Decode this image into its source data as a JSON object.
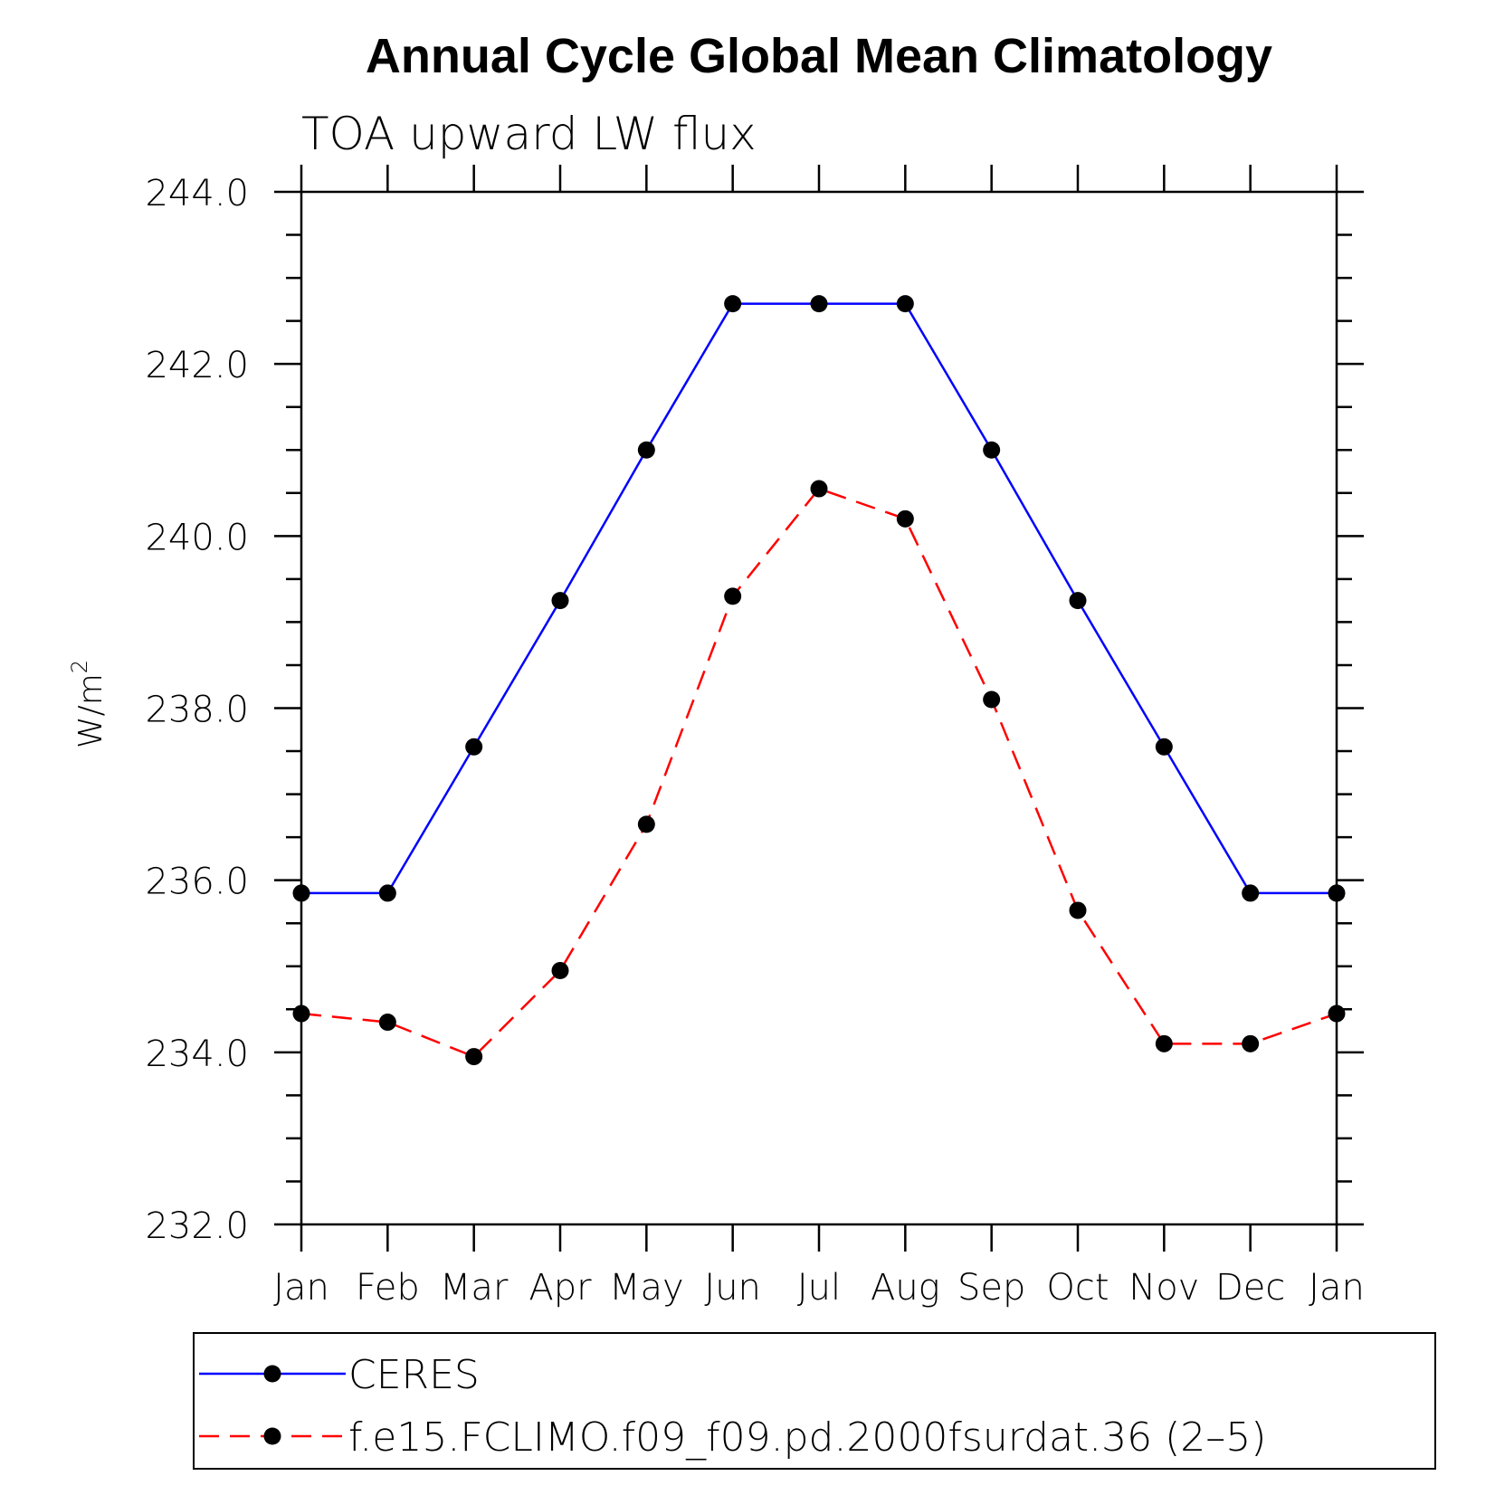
{
  "chart_data": {
    "type": "line",
    "title": "Annual Cycle Global Mean Climatology",
    "subtitle": "TOA upward LW flux",
    "xlabel": "",
    "ylabel": "W/m",
    "ylabel_superscript": "2",
    "categories": [
      "Jan",
      "Feb",
      "Mar",
      "Apr",
      "May",
      "Jun",
      "Jul",
      "Aug",
      "Sep",
      "Oct",
      "Nov",
      "Dec",
      "Jan"
    ],
    "ylim": [
      232.0,
      244.0
    ],
    "yticks": [
      "232.0",
      "234.0",
      "236.0",
      "238.0",
      "240.0",
      "242.0",
      "244.0"
    ],
    "y_minor_step": 0.5,
    "grid": false,
    "legend_position": "bottom",
    "series": [
      {
        "name": "CERES",
        "color": "#0000ff",
        "dash": "solid",
        "marker": "filled-circle",
        "values": [
          235.85,
          235.85,
          237.55,
          239.25,
          241.0,
          242.7,
          242.7,
          242.7,
          241.0,
          239.25,
          237.55,
          235.85,
          235.85
        ]
      },
      {
        "name": "f.e15.FCLIMO.f09_f09.pd.2000fsurdat.36 (2–5)",
        "color": "#ff0000",
        "dash": "dashed",
        "marker": "filled-circle",
        "values": [
          234.45,
          234.35,
          233.95,
          234.95,
          236.65,
          239.3,
          240.55,
          240.2,
          238.1,
          235.65,
          234.1,
          234.1,
          234.45
        ]
      }
    ]
  }
}
